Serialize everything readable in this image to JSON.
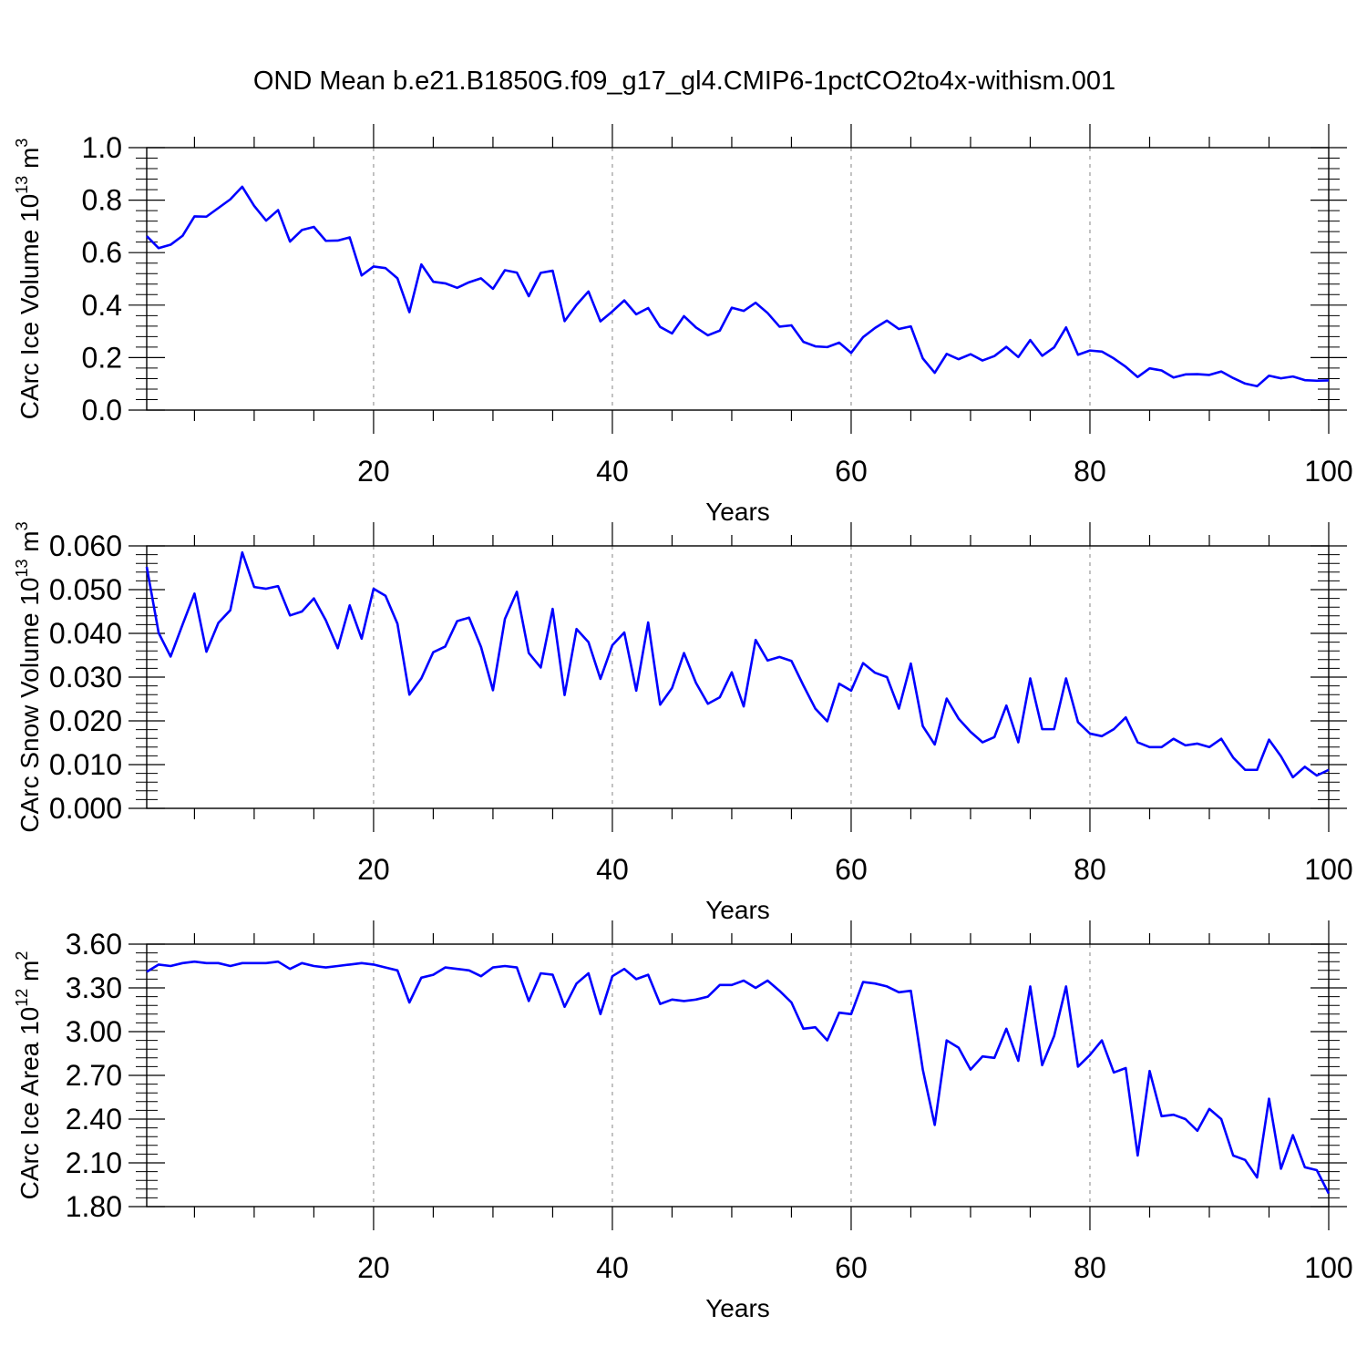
{
  "title": "OND Mean b.e21.B1850G.f09_g17_gl4.CMIP6-1pctCO2to4x-withism.001",
  "line_color": "#0000ff",
  "chart_data": [
    {
      "type": "line",
      "xlabel": "Years",
      "ylabel_main": "CArc Ice Volume 10",
      "ylabel_exp": "13",
      "ylabel_unit": " m",
      "ylabel_unit_exp": "3",
      "xlim": [
        1,
        100
      ],
      "ylim": [
        0.0,
        1.0
      ],
      "x_ticks": [
        20,
        40,
        60,
        80,
        100
      ],
      "x_tick_labels": [
        "20",
        "40",
        "60",
        "80",
        "100"
      ],
      "y_ticks": [
        0.0,
        0.2,
        0.4,
        0.6,
        0.8,
        1.0
      ],
      "y_tick_labels": [
        "0.0",
        "0.2",
        "0.4",
        "0.6",
        "0.8",
        "1.0"
      ],
      "grid": "x-dashed",
      "series": [
        {
          "name": "CArc Ice Volume",
          "values": [
            0.663,
            0.617,
            0.63,
            0.664,
            0.738,
            0.737,
            0.77,
            0.803,
            0.851,
            0.778,
            0.722,
            0.762,
            0.642,
            0.686,
            0.698,
            0.645,
            0.646,
            0.658,
            0.513,
            0.547,
            0.541,
            0.502,
            0.373,
            0.555,
            0.489,
            0.483,
            0.466,
            0.487,
            0.502,
            0.462,
            0.533,
            0.524,
            0.434,
            0.523,
            0.531,
            0.339,
            0.401,
            0.452,
            0.338,
            0.376,
            0.418,
            0.365,
            0.389,
            0.317,
            0.292,
            0.358,
            0.315,
            0.285,
            0.303,
            0.39,
            0.378,
            0.409,
            0.37,
            0.318,
            0.323,
            0.26,
            0.243,
            0.24,
            0.257,
            0.218,
            0.278,
            0.313,
            0.341,
            0.309,
            0.319,
            0.197,
            0.142,
            0.214,
            0.194,
            0.213,
            0.189,
            0.206,
            0.241,
            0.202,
            0.267,
            0.207,
            0.239,
            0.315,
            0.211,
            0.227,
            0.223,
            0.197,
            0.165,
            0.126,
            0.159,
            0.151,
            0.124,
            0.136,
            0.137,
            0.134,
            0.147,
            0.122,
            0.101,
            0.091,
            0.131,
            0.121,
            0.128,
            0.114,
            0.112,
            0.113
          ]
        }
      ]
    },
    {
      "type": "line",
      "xlabel": "Years",
      "ylabel_main": "CArc Snow Volume 10",
      "ylabel_exp": "13",
      "ylabel_unit": " m",
      "ylabel_unit_exp": "3",
      "xlim": [
        1,
        100
      ],
      "ylim": [
        0.0,
        0.06
      ],
      "x_ticks": [
        20,
        40,
        60,
        80,
        100
      ],
      "x_tick_labels": [
        "20",
        "40",
        "60",
        "80",
        "100"
      ],
      "y_ticks": [
        0.0,
        0.01,
        0.02,
        0.03,
        0.04,
        0.05,
        0.06
      ],
      "y_tick_labels": [
        "0.000",
        "0.010",
        "0.020",
        "0.030",
        "0.040",
        "0.050",
        "0.060"
      ],
      "grid": "x-dashed",
      "series": [
        {
          "name": "CArc Snow Volume",
          "values": [
            0.0552,
            0.0401,
            0.0347,
            0.042,
            0.0491,
            0.0358,
            0.0424,
            0.0453,
            0.0585,
            0.0506,
            0.0502,
            0.0508,
            0.0441,
            0.045,
            0.048,
            0.043,
            0.0366,
            0.0464,
            0.0388,
            0.0502,
            0.0486,
            0.0422,
            0.026,
            0.0297,
            0.0357,
            0.037,
            0.0428,
            0.0436,
            0.0369,
            0.027,
            0.0433,
            0.0495,
            0.0355,
            0.0322,
            0.0456,
            0.0259,
            0.041,
            0.038,
            0.0296,
            0.0373,
            0.0402,
            0.0269,
            0.0425,
            0.0237,
            0.0275,
            0.0355,
            0.0287,
            0.0239,
            0.0254,
            0.0311,
            0.0233,
            0.0385,
            0.0338,
            0.0346,
            0.0337,
            0.0281,
            0.0228,
            0.0199,
            0.0285,
            0.0269,
            0.0332,
            0.031,
            0.03,
            0.0228,
            0.0331,
            0.0188,
            0.0146,
            0.0251,
            0.0205,
            0.0175,
            0.0151,
            0.0163,
            0.0235,
            0.0151,
            0.0297,
            0.0181,
            0.0181,
            0.0297,
            0.0197,
            0.0171,
            0.0165,
            0.0181,
            0.0208,
            0.0151,
            0.014,
            0.014,
            0.0159,
            0.0144,
            0.0148,
            0.014,
            0.0159,
            0.0116,
            0.0088,
            0.0088,
            0.0157,
            0.0119,
            0.0071,
            0.0095,
            0.0075,
            0.0088
          ]
        }
      ]
    },
    {
      "type": "line",
      "xlabel": "Years",
      "ylabel_main": "CArc Ice Area 10",
      "ylabel_exp": "12",
      "ylabel_unit": " m",
      "ylabel_unit_exp": "2",
      "xlim": [
        1,
        100
      ],
      "ylim": [
        1.8,
        3.6
      ],
      "x_ticks": [
        20,
        40,
        60,
        80,
        100
      ],
      "x_tick_labels": [
        "20",
        "40",
        "60",
        "80",
        "100"
      ],
      "y_ticks": [
        1.8,
        2.1,
        2.4,
        2.7,
        3.0,
        3.3,
        3.6
      ],
      "y_tick_labels": [
        "1.80",
        "2.10",
        "2.40",
        "2.70",
        "3.00",
        "3.30",
        "3.60"
      ],
      "grid": "x-dashed",
      "series": [
        {
          "name": "CArc Ice Area",
          "values": [
            3.41,
            3.46,
            3.45,
            3.47,
            3.48,
            3.47,
            3.47,
            3.45,
            3.47,
            3.47,
            3.47,
            3.48,
            3.43,
            3.47,
            3.45,
            3.44,
            3.45,
            3.46,
            3.47,
            3.46,
            3.44,
            3.42,
            3.2,
            3.37,
            3.39,
            3.44,
            3.43,
            3.42,
            3.38,
            3.44,
            3.45,
            3.44,
            3.21,
            3.4,
            3.39,
            3.17,
            3.33,
            3.4,
            3.12,
            3.38,
            3.43,
            3.36,
            3.39,
            3.19,
            3.22,
            3.21,
            3.22,
            3.24,
            3.32,
            3.32,
            3.35,
            3.3,
            3.35,
            3.28,
            3.2,
            3.02,
            3.03,
            2.94,
            3.13,
            3.12,
            3.34,
            3.33,
            3.31,
            3.27,
            3.28,
            2.74,
            2.36,
            2.94,
            2.89,
            2.74,
            2.83,
            2.82,
            3.02,
            2.8,
            3.31,
            2.77,
            2.97,
            3.31,
            2.76,
            2.84,
            2.94,
            2.72,
            2.75,
            2.15,
            2.73,
            2.42,
            2.43,
            2.4,
            2.32,
            2.47,
            2.4,
            2.15,
            2.12,
            2.0,
            2.54,
            2.06,
            2.29,
            2.07,
            2.05,
            1.89
          ]
        }
      ]
    }
  ]
}
